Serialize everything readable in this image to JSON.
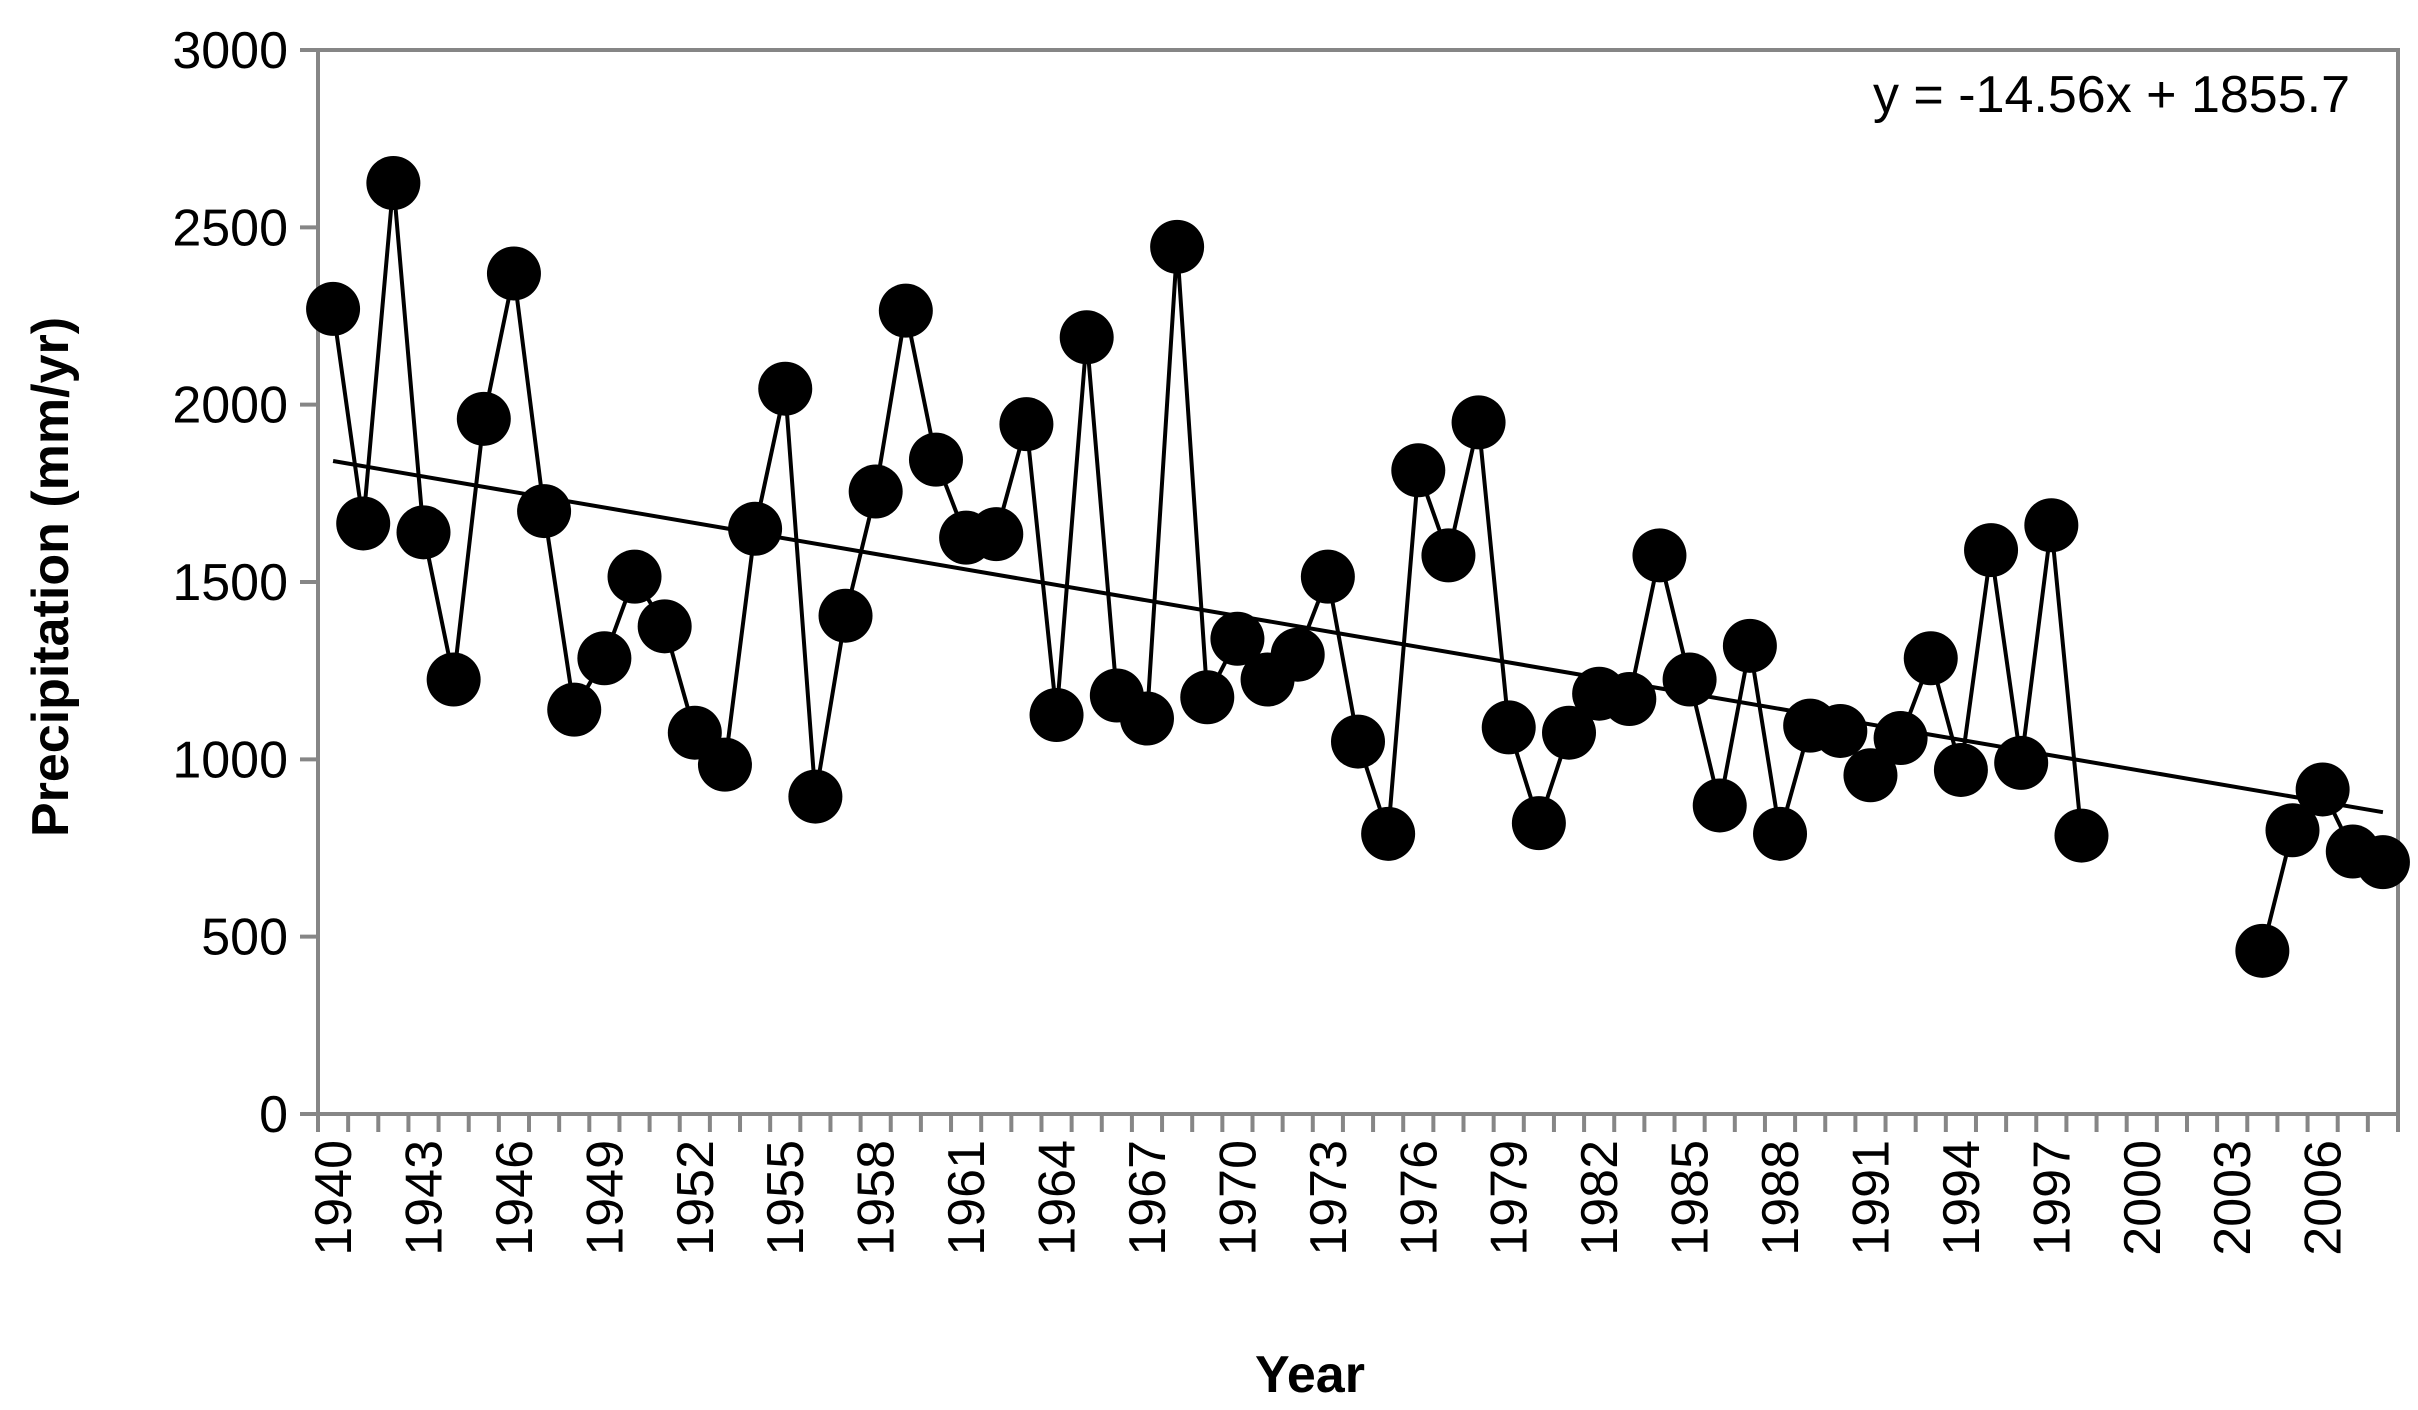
{
  "chart_data": {
    "type": "line",
    "xlabel": "Year",
    "ylabel": "Precipitation (mm/yr)",
    "ylim": [
      0,
      3000
    ],
    "yticks": [
      0,
      500,
      1000,
      1500,
      2000,
      2500,
      3000
    ],
    "xlim": [
      1940,
      2008
    ],
    "xticks": [
      1940,
      1943,
      1946,
      1949,
      1952,
      1955,
      1958,
      1961,
      1964,
      1967,
      1970,
      1973,
      1976,
      1979,
      1982,
      1985,
      1988,
      1991,
      1994,
      1997,
      2000,
      2003,
      2006
    ],
    "grid": false,
    "legend": "none",
    "marker_color": "#000000",
    "line_color": "#000000",
    "series": [
      {
        "x": [
          1940,
          1941,
          1942,
          1943,
          1944,
          1945,
          1946,
          1947,
          1948,
          1949,
          1950,
          1951,
          1952,
          1953,
          1954,
          1955,
          1956,
          1957,
          1958,
          1959,
          1960,
          1961,
          1962,
          1963,
          1964,
          1965,
          1966,
          1967,
          1968,
          1969,
          1970,
          1971,
          1972,
          1973,
          1974,
          1975,
          1976,
          1977,
          1978,
          1979,
          1980,
          1981,
          1982,
          1983,
          1984,
          1985,
          1986,
          1987,
          1988,
          1989,
          1990,
          1991,
          1992,
          1993,
          1994,
          1995,
          1996,
          1997,
          1998
        ],
        "values": [
          2270,
          1665,
          2625,
          1640,
          1225,
          1960,
          2370,
          1700,
          1140,
          1285,
          1515,
          1375,
          1075,
          985,
          1650,
          2045,
          895,
          1405,
          1755,
          2265,
          1845,
          1625,
          1635,
          1945,
          1125,
          2190,
          1180,
          1115,
          2445,
          1175,
          1340,
          1225,
          1295,
          1515,
          1050,
          790,
          1815,
          1575,
          1950,
          1090,
          820,
          1075,
          1185,
          1170,
          1575,
          1225,
          870,
          1320,
          790,
          1095,
          1080,
          955,
          1060,
          1285,
          970,
          1590,
          990,
          1660,
          785
        ]
      },
      {
        "x": [
          2004,
          2005,
          2006,
          2007,
          2008
        ],
        "values": [
          460,
          800,
          915,
          740,
          710
        ]
      }
    ],
    "trendline": {
      "equation": "y = -14.56x + 1855.7",
      "x": [
        1940,
        2008
      ],
      "values": [
        1841.1,
        851.0
      ]
    }
  }
}
